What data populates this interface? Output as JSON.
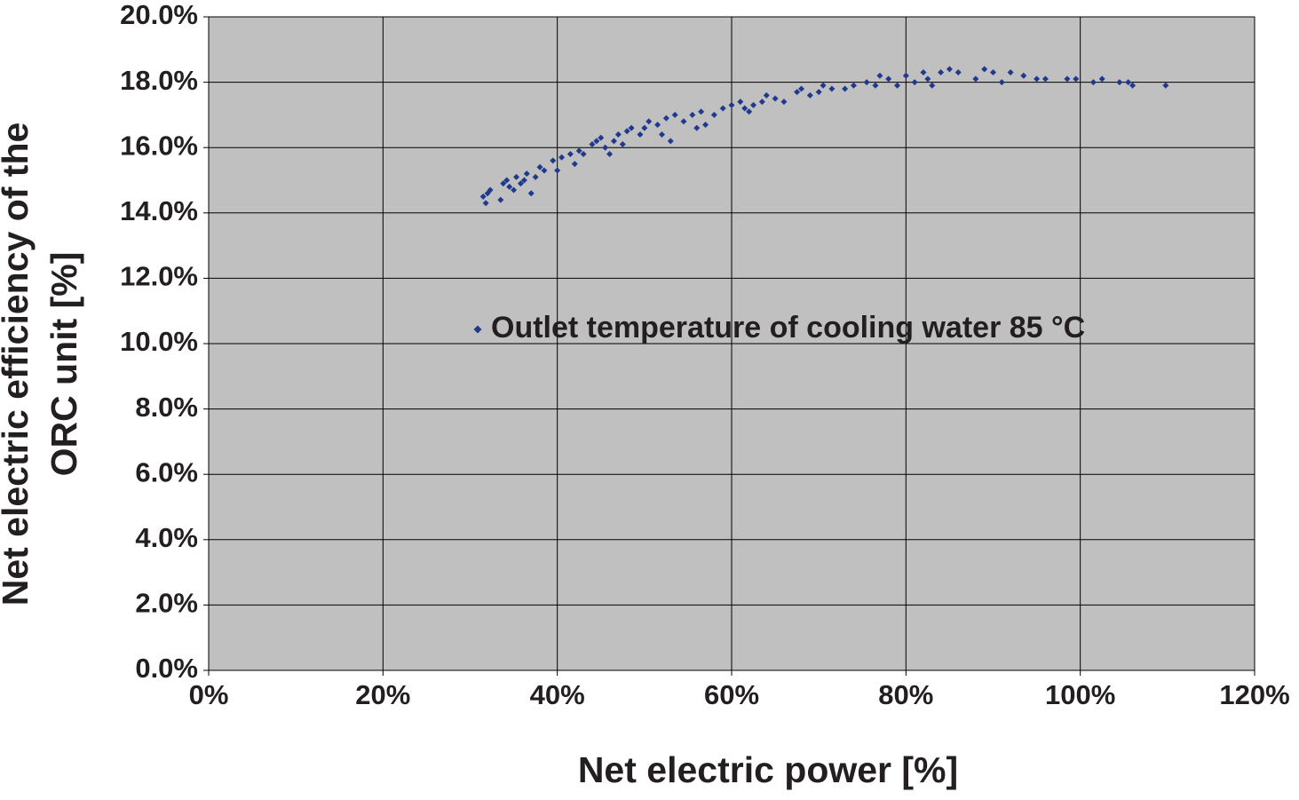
{
  "chart_data": {
    "type": "scatter",
    "xlabel": "Net electric power [%]",
    "ylabel": [
      "Net electric efficiency of the",
      "ORC unit [%]"
    ],
    "xlim": [
      0,
      120
    ],
    "xticks": [
      {
        "value": 0,
        "label": "0%"
      },
      {
        "value": 20,
        "label": "20%"
      },
      {
        "value": 40,
        "label": "40%"
      },
      {
        "value": 60,
        "label": "60%"
      },
      {
        "value": 80,
        "label": "80%"
      },
      {
        "value": 100,
        "label": "100%"
      },
      {
        "value": 120,
        "label": "120%"
      }
    ],
    "ylim": [
      0,
      20
    ],
    "yticks": [
      {
        "value": 0,
        "label": "0.0%"
      },
      {
        "value": 2,
        "label": "2.0%"
      },
      {
        "value": 4,
        "label": "4.0%"
      },
      {
        "value": 6,
        "label": "6.0%"
      },
      {
        "value": 8,
        "label": "8.0%"
      },
      {
        "value": 10,
        "label": "10.0%"
      },
      {
        "value": 12,
        "label": "12.0%"
      },
      {
        "value": 14,
        "label": "14.0%"
      },
      {
        "value": 16,
        "label": "16.0%"
      },
      {
        "value": 18,
        "label": "18.0%"
      },
      {
        "value": 20,
        "label": "20.0%"
      }
    ],
    "grid": true,
    "background": "#c0c0c0",
    "series": [
      {
        "name": "Outlet temperature of cooling water 85 °C",
        "color": "#1f3a8c",
        "x": [
          31.5,
          31.8,
          32.0,
          32.3,
          33.5,
          33.8,
          34.2,
          34.5,
          35.0,
          35.3,
          35.8,
          36.2,
          36.5,
          37.0,
          37.5,
          38.0,
          38.5,
          39.5,
          40.0,
          40.5,
          41.5,
          42.0,
          42.5,
          43.0,
          44.0,
          44.5,
          45.0,
          45.5,
          46.0,
          46.5,
          47.0,
          47.5,
          48.0,
          48.5,
          49.5,
          50.0,
          50.5,
          51.5,
          52.0,
          52.5,
          53.0,
          53.5,
          54.5,
          55.5,
          56.0,
          56.5,
          57.0,
          58.0,
          59.0,
          60.0,
          61.0,
          61.5,
          62.0,
          62.5,
          63.5,
          64.0,
          65.0,
          66.0,
          67.5,
          68.0,
          69.0,
          70.0,
          70.5,
          71.5,
          73.0,
          74.0,
          75.5,
          76.5,
          77.0,
          78.0,
          79.0,
          80.0,
          81.0,
          82.0,
          82.5,
          83.0,
          84.0,
          85.0,
          86.0,
          88.0,
          89.0,
          90.0,
          91.0,
          92.0,
          93.5,
          95.0,
          96.0,
          98.5,
          99.5,
          101.5,
          102.5,
          104.5,
          105.5,
          106.0,
          109.8
        ],
        "values": [
          14.5,
          14.3,
          14.6,
          14.7,
          14.4,
          14.9,
          15.0,
          14.8,
          14.7,
          15.1,
          14.9,
          15.0,
          15.2,
          14.6,
          15.1,
          15.4,
          15.3,
          15.6,
          15.3,
          15.7,
          15.8,
          15.5,
          15.9,
          15.8,
          16.1,
          16.2,
          16.3,
          16.0,
          15.8,
          16.2,
          16.4,
          16.1,
          16.5,
          16.6,
          16.4,
          16.6,
          16.8,
          16.7,
          16.4,
          16.9,
          16.2,
          17.0,
          16.8,
          17.0,
          16.6,
          17.1,
          16.7,
          17.0,
          17.2,
          17.3,
          17.4,
          17.2,
          17.1,
          17.3,
          17.4,
          17.6,
          17.5,
          17.4,
          17.7,
          17.8,
          17.6,
          17.7,
          17.9,
          17.8,
          17.8,
          17.9,
          18.0,
          17.9,
          18.2,
          18.1,
          17.9,
          18.2,
          18.0,
          18.3,
          18.1,
          17.9,
          18.3,
          18.4,
          18.3,
          18.1,
          18.4,
          18.3,
          18.0,
          18.3,
          18.2,
          18.1,
          18.1,
          18.1,
          18.1,
          18.0,
          18.1,
          18.0,
          18.0,
          17.9,
          17.9
        ]
      }
    ]
  }
}
